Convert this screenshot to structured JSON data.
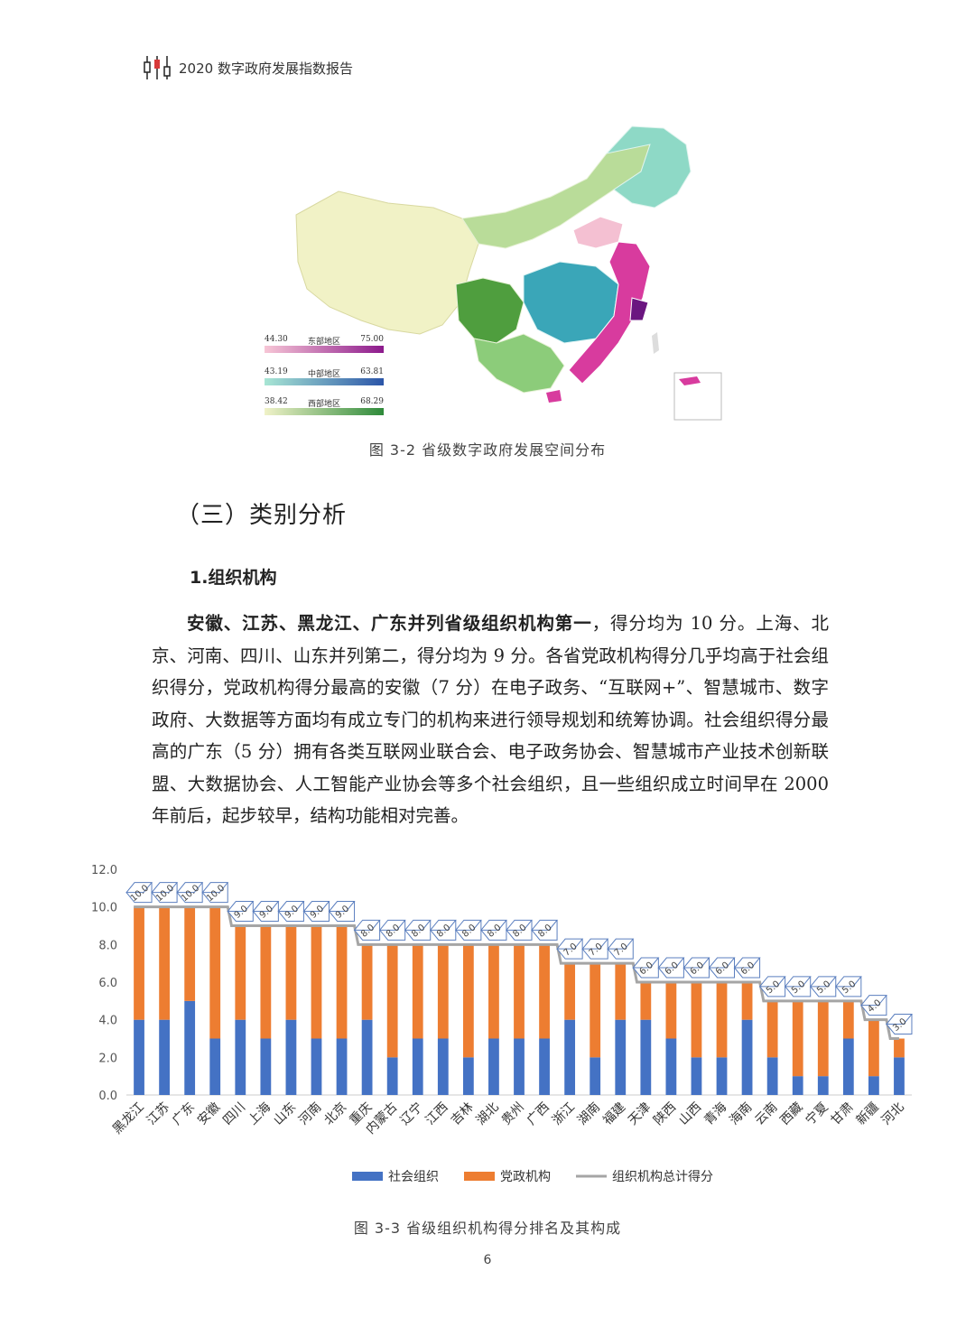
{
  "header": {
    "title": "2020 数字政府发展指数报告"
  },
  "map": {
    "legend": [
      {
        "low": "44.30",
        "label": "东部地区",
        "high": "75.00",
        "color_low": "#f7c6d6",
        "color_high": "#8c1a8c"
      },
      {
        "low": "43.19",
        "label": "中部地区",
        "high": "63.81",
        "color_low": "#a8e6d4",
        "color_high": "#2b55a8"
      },
      {
        "low": "38.42",
        "label": "西部地区",
        "high": "68.29",
        "color_low": "#f0f2c8",
        "color_high": "#2e8a3a"
      }
    ]
  },
  "figure1": {
    "caption": "图 3-2   省级数字政府发展空间分布"
  },
  "section": {
    "title": "（三）类别分析"
  },
  "subsection": {
    "title": "1.组织机构"
  },
  "body": {
    "bold_lead": "安徽、江苏、黑龙江、广东并列省级组织机构第一",
    "rest": "，得分均为 10 分。上海、北京、河南、四川、山东并列第二，得分均为 9 分。各省党政机构得分几乎均高于社会组织得分，党政机构得分最高的安徽（7 分）在电子政务、“互联网+”、智慧城市、数字政府、大数据等方面均有成立专门的机构来进行领导规划和统筹协调。社会组织得分最高的广东（5 分）拥有各类互联网业联合会、电子政务协会、智慧城市产业技术创新联盟、大数据协会、人工智能产业协会等多个社会组织，且一些组织成立时间早在 2000 年前后，起步较早，结构功能相对完善。"
  },
  "chart_data": {
    "type": "bar",
    "stacked": true,
    "categories": [
      "黑龙江",
      "江苏",
      "广东",
      "安徽",
      "四川",
      "上海",
      "山东",
      "河南",
      "北京",
      "重庆",
      "内蒙古",
      "辽宁",
      "江西",
      "吉林",
      "湖北",
      "贵州",
      "广西",
      "浙江",
      "湖南",
      "福建",
      "天津",
      "陕西",
      "山西",
      "青海",
      "海南",
      "云南",
      "西藏",
      "宁夏",
      "甘肃",
      "新疆",
      "河北"
    ],
    "series": [
      {
        "name": "社会组织",
        "color": "#4472c4",
        "values": [
          4,
          4,
          5,
          3,
          4,
          3,
          4,
          3,
          3,
          4,
          2,
          3,
          3,
          2,
          3,
          3,
          3,
          4,
          2,
          4,
          4,
          3,
          2,
          2,
          4,
          2,
          1,
          1,
          3,
          1,
          2
        ]
      },
      {
        "name": "党政机构",
        "color": "#ed7d31",
        "values": [
          6,
          6,
          5,
          7,
          5,
          6,
          5,
          6,
          6,
          4,
          6,
          5,
          5,
          6,
          5,
          5,
          5,
          3,
          5,
          3,
          2,
          3,
          4,
          4,
          2,
          3,
          4,
          4,
          2,
          3,
          1
        ]
      },
      {
        "name": "组织机构总计得分",
        "color": "#a5a5a5",
        "type": "line",
        "values": [
          10,
          10,
          10,
          10,
          9,
          9,
          9,
          9,
          9,
          8,
          8,
          8,
          8,
          8,
          8,
          8,
          8,
          7,
          7,
          7,
          6,
          6,
          6,
          6,
          6,
          5,
          5,
          5,
          5,
          4,
          3
        ]
      }
    ],
    "total_labels": [
      "10.0",
      "10.0",
      "10.0",
      "10.0",
      "9.0",
      "9.0",
      "9.0",
      "9.0",
      "9.0",
      "8.0",
      "8.0",
      "8.0",
      "8.0",
      "8.0",
      "8.0",
      "8.0",
      "8.0",
      "7.0",
      "7.0",
      "7.0",
      "6.0",
      "6.0",
      "6.0",
      "6.0",
      "6.0",
      "5.0",
      "5.0",
      "5.0",
      "5.0",
      "4.0",
      "3.0"
    ],
    "ylim": [
      0,
      12
    ],
    "yticks": [
      "0.0",
      "2.0",
      "4.0",
      "6.0",
      "8.0",
      "10.0",
      "12.0"
    ],
    "legend_position": "bottom"
  },
  "figure2": {
    "caption": "图 3-3   省级组织机构得分排名及其构成"
  },
  "page": {
    "number": "6"
  }
}
